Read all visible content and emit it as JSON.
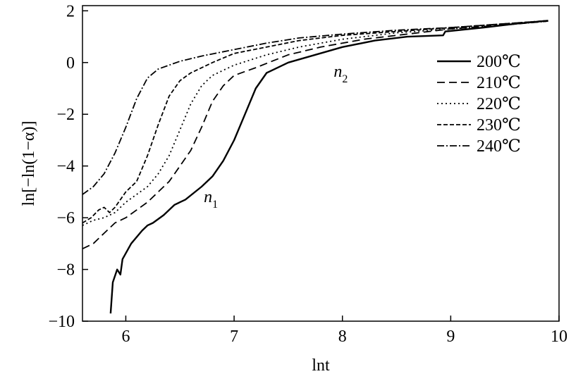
{
  "chart_data": {
    "type": "line",
    "xlabel": "lnt",
    "ylabel": "ln[−ln(1−α)]",
    "xlim": [
      5.6,
      10
    ],
    "ylim": [
      -10,
      2.2
    ],
    "xticks": [
      6,
      7,
      8,
      9,
      10
    ],
    "yticks": [
      2,
      0,
      -2,
      -4,
      -6,
      -8,
      -10
    ],
    "xtick_labels": [
      "6",
      "7",
      "8",
      "9",
      "10"
    ],
    "ytick_labels": [
      "2",
      "0",
      "−2",
      "−4",
      "−6",
      "−8",
      "−10"
    ],
    "legend_position": "right",
    "annotations": [
      {
        "base": "n",
        "sub": "1",
        "x": 6.72,
        "y": -5.4
      },
      {
        "base": "n",
        "sub": "2",
        "x": 7.92,
        "y": -0.55
      }
    ],
    "series": [
      {
        "name": "200℃",
        "dash": "",
        "width": 2.4,
        "x": [
          5.86,
          5.88,
          5.92,
          5.95,
          5.97,
          6.05,
          6.15,
          6.2,
          6.25,
          6.35,
          6.45,
          6.5,
          6.55,
          6.7,
          6.8,
          6.9,
          7.0,
          7.1,
          7.2,
          7.3,
          7.5,
          7.75,
          8.0,
          8.3,
          8.6,
          8.93,
          8.95,
          9.3,
          9.6,
          9.9
        ],
        "y": [
          -9.7,
          -8.5,
          -8.0,
          -8.2,
          -7.6,
          -7.0,
          -6.5,
          -6.3,
          -6.2,
          -5.9,
          -5.5,
          -5.4,
          -5.3,
          -4.8,
          -4.4,
          -3.8,
          -3.0,
          -2.0,
          -1.0,
          -0.4,
          0.0,
          0.3,
          0.6,
          0.85,
          1.0,
          1.05,
          1.2,
          1.35,
          1.5,
          1.62
        ]
      },
      {
        "name": "210℃",
        "dash": "11 6",
        "width": 1.8,
        "x": [
          5.6,
          5.7,
          5.8,
          5.9,
          6.0,
          6.2,
          6.4,
          6.5,
          6.6,
          6.7,
          6.8,
          6.9,
          7.0,
          7.2,
          7.5,
          7.8,
          8.2,
          8.6,
          9.0,
          9.5,
          9.9
        ],
        "y": [
          -7.2,
          -7.0,
          -6.6,
          -6.2,
          -6.0,
          -5.4,
          -4.6,
          -4.0,
          -3.4,
          -2.5,
          -1.5,
          -0.9,
          -0.5,
          -0.2,
          0.3,
          0.6,
          0.9,
          1.1,
          1.3,
          1.45,
          1.6
        ]
      },
      {
        "name": "220℃",
        "dash": "2 4",
        "width": 1.8,
        "x": [
          5.6,
          5.7,
          5.8,
          5.9,
          6.0,
          6.1,
          6.2,
          6.3,
          6.4,
          6.5,
          6.6,
          6.7,
          6.8,
          7.0,
          7.3,
          7.6,
          8.0,
          8.5,
          9.0,
          9.5,
          9.9
        ],
        "y": [
          -6.3,
          -6.1,
          -6.0,
          -5.8,
          -5.4,
          -5.1,
          -4.8,
          -4.3,
          -3.6,
          -2.6,
          -1.6,
          -0.9,
          -0.5,
          -0.1,
          0.3,
          0.6,
          0.9,
          1.15,
          1.3,
          1.45,
          1.6
        ]
      },
      {
        "name": "230℃",
        "dash": "6 3",
        "width": 1.8,
        "x": [
          5.6,
          5.68,
          5.75,
          5.8,
          5.85,
          5.9,
          6.0,
          6.1,
          6.2,
          6.3,
          6.4,
          6.5,
          6.6,
          6.8,
          7.0,
          7.3,
          7.6,
          8.0,
          8.5,
          9.0,
          9.5,
          9.9
        ],
        "y": [
          -6.2,
          -6.0,
          -5.7,
          -5.6,
          -5.8,
          -5.6,
          -5.0,
          -4.6,
          -3.6,
          -2.4,
          -1.3,
          -0.7,
          -0.4,
          0.0,
          0.35,
          0.6,
          0.85,
          1.05,
          1.2,
          1.35,
          1.5,
          1.62
        ]
      },
      {
        "name": "240℃",
        "dash": "10 3 2 3",
        "width": 1.8,
        "x": [
          5.6,
          5.7,
          5.8,
          5.9,
          6.0,
          6.1,
          6.2,
          6.3,
          6.5,
          6.7,
          7.0,
          7.3,
          7.6,
          8.0,
          8.5,
          9.0,
          9.5,
          9.9
        ],
        "y": [
          -5.1,
          -4.8,
          -4.3,
          -3.5,
          -2.5,
          -1.4,
          -0.6,
          -0.25,
          0.05,
          0.25,
          0.5,
          0.75,
          0.95,
          1.1,
          1.25,
          1.35,
          1.5,
          1.62
        ]
      }
    ]
  }
}
